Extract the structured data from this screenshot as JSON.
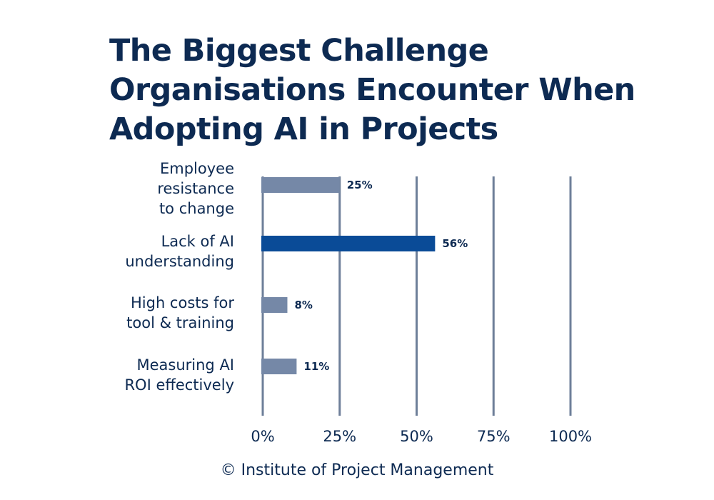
{
  "chart_data": {
    "type": "bar",
    "orientation": "horizontal",
    "title": "The Biggest Challenge Organisations Encounter When Adopting AI in Projects",
    "categories": [
      [
        "Employee",
        "resistance",
        "to change"
      ],
      [
        "Lack of AI",
        "understanding"
      ],
      [
        "High costs for",
        "tool & training"
      ],
      [
        "Measuring AI",
        "ROI effectively"
      ]
    ],
    "values": [
      25,
      56,
      8,
      11
    ],
    "value_labels": [
      "25%",
      "56%",
      "8%",
      "11%"
    ],
    "highlight_index": 1,
    "xlim": [
      0,
      100
    ],
    "xticks": [
      0,
      25,
      50,
      75,
      100
    ],
    "xtick_labels": [
      "0%",
      "25%",
      "50%",
      "75%",
      "100%"
    ],
    "grid": true,
    "legend": "none"
  },
  "colors": {
    "bar": "#7588a7",
    "bar_highlight": "#0a4b97",
    "grid": "#6e7f99",
    "text": "#0d2a52"
  },
  "source": "© Institute of Project Management"
}
